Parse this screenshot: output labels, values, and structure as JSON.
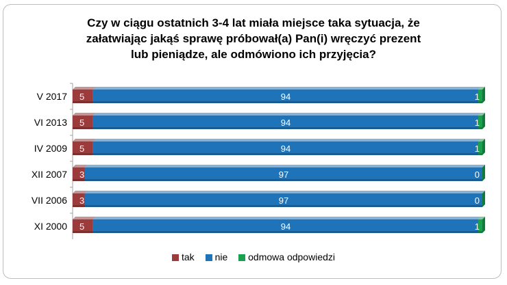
{
  "title_lines": [
    "Czy w ciągu ostatnich 3-4 lat miała miejsce taka sytuacja, że",
    "załatwiając jakąś sprawę próbował(a) Pan(i) wręczyć prezent",
    "lub pieniądze, ale odmówiono ich przyjęcia?"
  ],
  "chart_data": {
    "type": "bar",
    "orientation": "horizontal",
    "stacked": true,
    "percent_stacked": true,
    "title": "Czy w ciągu ostatnich 3-4 lat miała miejsce taka sytuacja, że załatwiając jakąś sprawę próbował(a) Pan(i) wręczyć prezent lub pieniądze, ale odmówiono ich przyjęcia?",
    "categories": [
      "V 2017",
      "VI 2013",
      "IV 2009",
      "XII 2007",
      "VII 2006",
      "XI 2000"
    ],
    "series": [
      {
        "name": "tak",
        "color": "#9b3b3b",
        "values": [
          5,
          5,
          5,
          3,
          3,
          5
        ]
      },
      {
        "name": "nie",
        "color": "#1f73b9",
        "values": [
          94,
          94,
          94,
          97,
          97,
          94
        ]
      },
      {
        "name": "odmowa odpowiedzi",
        "color": "#1aa04e",
        "values": [
          1,
          1,
          1,
          0,
          0,
          1
        ]
      }
    ],
    "xlim": [
      0,
      100
    ],
    "grid": false,
    "legend_position": "bottom"
  }
}
